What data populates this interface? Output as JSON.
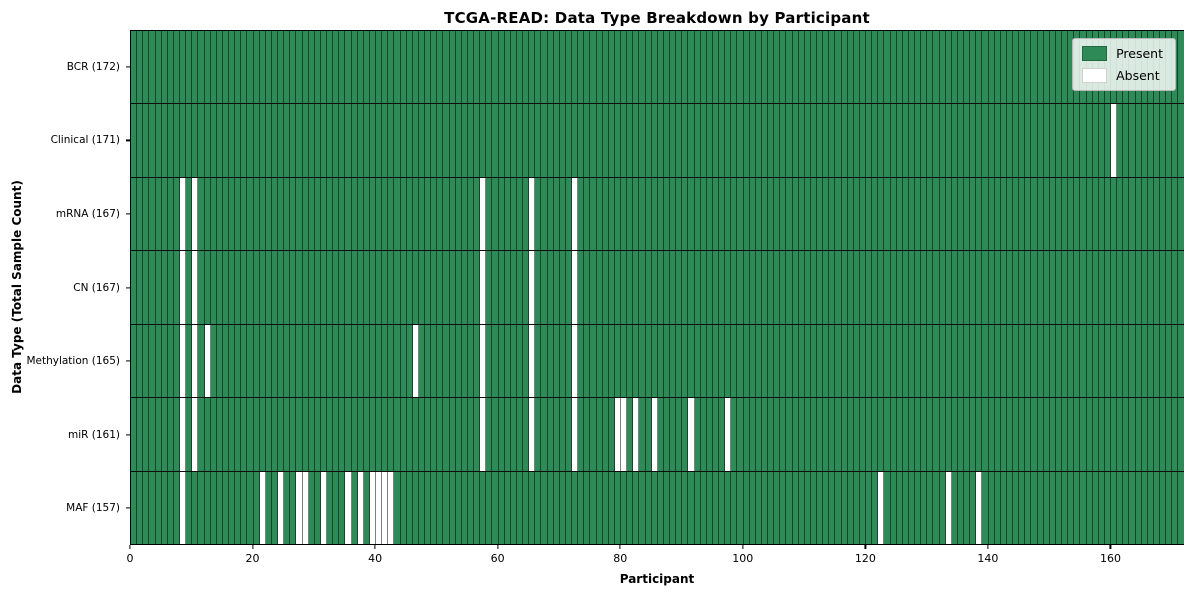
{
  "chart_data": {
    "type": "heatmap",
    "title": "TCGA-READ: Data Type Breakdown by Participant",
    "xlabel": "Participant",
    "ylabel": "Data Type (Total Sample Count)",
    "participants_total": 172,
    "x_range": [
      0,
      172
    ],
    "x_ticks": [
      0,
      20,
      40,
      60,
      80,
      100,
      120,
      140,
      160
    ],
    "grid": "cell-edges",
    "legend": {
      "position": "upper right",
      "present_label": "Present",
      "absent_label": "Absent"
    },
    "colors": {
      "present": "#2e8b57",
      "absent": "#ffffff",
      "cell_edge": "rgba(0,0,0,0.5)",
      "row_separator": "#0d0d0d",
      "legend_bg": "rgba(255,255,255,0.82)"
    },
    "rows": [
      {
        "label": "BCR (172)",
        "name": "BCR",
        "total_samples": 172,
        "absent_participants": []
      },
      {
        "label": "Clinical (171)",
        "name": "Clinical",
        "total_samples": 171,
        "absent_participants": [
          160
        ]
      },
      {
        "label": "mRNA (167)",
        "name": "mRNA",
        "total_samples": 167,
        "absent_participants": [
          8,
          10,
          57,
          65,
          72
        ]
      },
      {
        "label": "CN (167)",
        "name": "CN",
        "total_samples": 167,
        "absent_participants": [
          8,
          10,
          57,
          65,
          72
        ]
      },
      {
        "label": "Methylation (165)",
        "name": "Methylation",
        "total_samples": 165,
        "absent_participants": [
          8,
          10,
          12,
          46,
          57,
          65,
          72
        ]
      },
      {
        "label": "miR (161)",
        "name": "miR",
        "total_samples": 161,
        "absent_participants": [
          8,
          10,
          57,
          65,
          72,
          79,
          80,
          82,
          85,
          91,
          97
        ]
      },
      {
        "label": "MAF (157)",
        "name": "MAF",
        "total_samples": 157,
        "absent_participants": [
          8,
          21,
          24,
          27,
          28,
          31,
          35,
          37,
          39,
          40,
          41,
          42,
          122,
          133,
          138
        ]
      }
    ]
  }
}
